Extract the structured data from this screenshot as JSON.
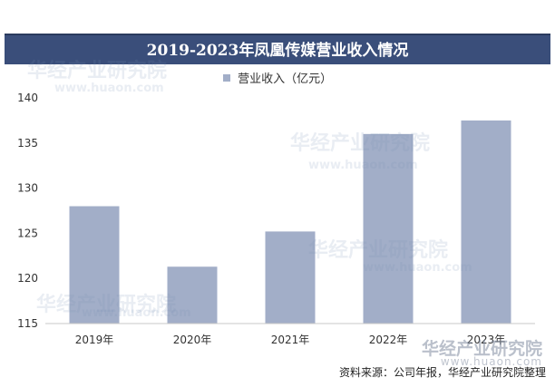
{
  "chart_data": {
    "type": "bar",
    "title": "2019-2023年凤凰传媒营业收入情况",
    "legend": {
      "position": "top",
      "entries": [
        "营业收入（亿元）"
      ]
    },
    "categories": [
      "2019年",
      "2020年",
      "2021年",
      "2022年",
      "2023年"
    ],
    "series": [
      {
        "name": "营业收入（亿元）",
        "values": [
          128,
          121.3,
          125.2,
          136,
          137.5
        ]
      }
    ],
    "y_ticks": [
      "115",
      "120",
      "125",
      "130",
      "135",
      "140"
    ],
    "ylim": [
      115,
      140
    ],
    "grid": false,
    "bar_color": "#a2aec8"
  },
  "watermark": {
    "brand": "华经产业研究院",
    "url": "www.huaon.com"
  },
  "source_note": "资料来源：公司年报，华经产业研究院整理"
}
